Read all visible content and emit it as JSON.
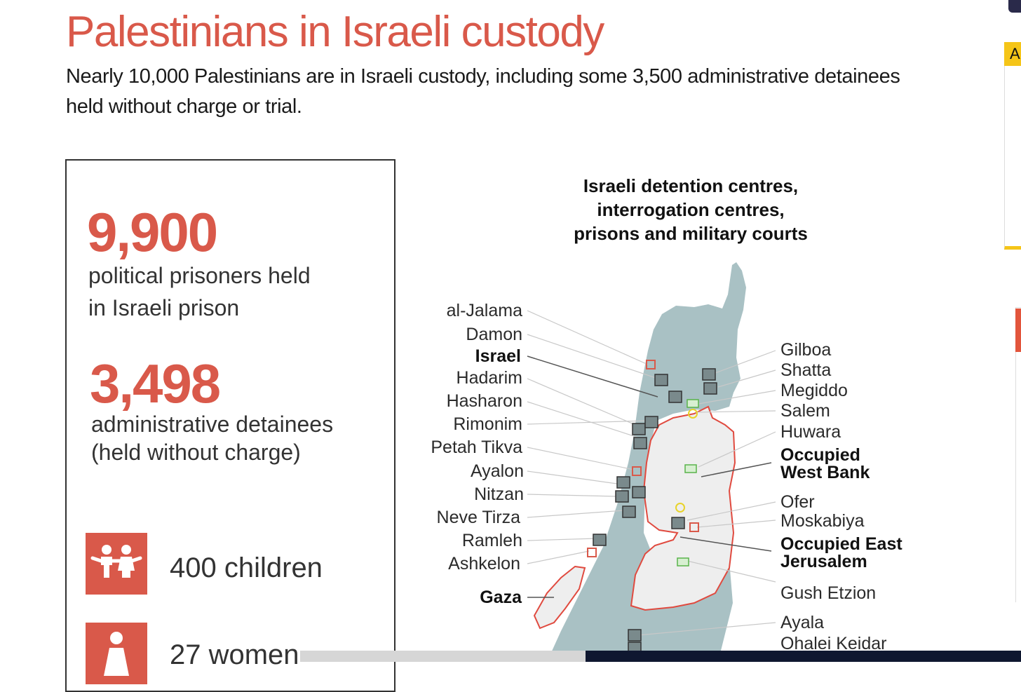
{
  "header": {
    "title": "Palestinians in Israeli custody",
    "subtitle": "Nearly 10,000 Palestinians are in Israeli custody, including some 3,500 administrative detainees held without charge or trial."
  },
  "stats": {
    "prisoners_number": "9,900",
    "prisoners_label_1": "political prisoners held",
    "prisoners_label_2": "in Israeli prison",
    "detainees_number": "3,498",
    "detainees_label_1": "administrative detainees",
    "detainees_label_2": "(held without charge)",
    "children_label": "400 children",
    "women_label": "27 women"
  },
  "map": {
    "title_1": "Israeli detention centres,",
    "title_2": "interrogation centres,",
    "title_3": "prisons and military courts",
    "left_labels": [
      "al-Jalama",
      "Damon",
      "Israel",
      "Hadarim",
      "Hasharon",
      "Rimonim",
      "Petah Tikva",
      "Ayalon",
      "Nitzan",
      "Neve Tirza",
      "Ramleh",
      "Ashkelon",
      "Gaza"
    ],
    "right_labels": [
      "Gilboa",
      "Shatta",
      "Megiddo",
      "Salem",
      "Huwara",
      "Occupied",
      "West Bank",
      "Ofer",
      "Moskabiya",
      "Occupied East",
      "Jerusalem",
      "Gush Etzion",
      "Ayala",
      "Ohalei Keidar"
    ]
  },
  "sidebar": {
    "tag": "A"
  },
  "colors": {
    "accent": "#d9594a",
    "land": "#a9c1c4",
    "west_bank": "#eeeeee",
    "border_line": "#e04a3f",
    "court_green": "#59b34a",
    "interrogation_yellow": "#e8d32a"
  },
  "icons": [
    "children-icon",
    "woman-icon",
    "prison-icon",
    "detention-icon",
    "court-icon",
    "interrogation-icon"
  ]
}
